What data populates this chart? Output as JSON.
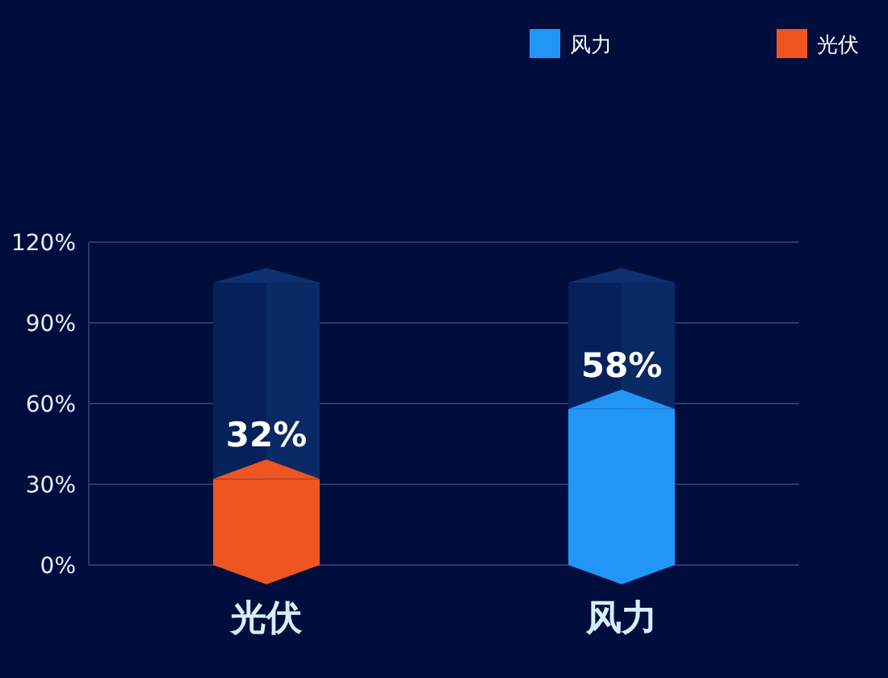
{
  "chart_data": {
    "type": "bar",
    "stacked": true,
    "categories": [
      "光伏",
      "风力"
    ],
    "series": [
      {
        "name": "风力",
        "color": "#2196f7",
        "values": [
          null,
          58
        ],
        "value_labels": [
          null,
          "58%"
        ]
      },
      {
        "name": "光伏",
        "color": "#ee5520",
        "values": [
          32,
          null
        ],
        "value_labels": [
          "32%",
          null
        ]
      },
      {
        "color": "#06215a",
        "values": [
          73,
          47
        ]
      }
    ],
    "ylim": [
      0,
      120
    ],
    "yticks": [
      {
        "value": 0,
        "label": "0%"
      },
      {
        "value": 30,
        "label": "30%"
      },
      {
        "value": 60,
        "label": "60%"
      },
      {
        "value": 90,
        "label": "90%"
      },
      {
        "value": 120,
        "label": "120%"
      }
    ],
    "grid": "y",
    "legend": "top right"
  }
}
